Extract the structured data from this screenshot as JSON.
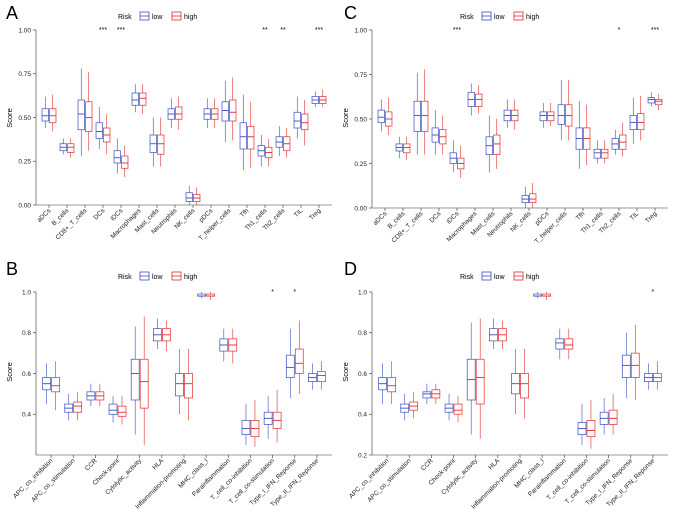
{
  "colors": {
    "low": "#3a4cc0",
    "high": "#e0292b",
    "axis": "#333333"
  },
  "chart_data": [
    {
      "panel": "A",
      "type": "box",
      "ylabel": "Score",
      "legend_title": "Risk",
      "legend": [
        "low",
        "high"
      ],
      "ylim": [
        0.0,
        1.0
      ],
      "yticks": [
        "0.00",
        "0.25",
        "0.50",
        "0.75",
        "1.00"
      ],
      "categories": [
        "aDCs",
        "B_cells",
        "CD8+_T_cells",
        "DCs",
        "iDCs",
        "Macrophages",
        "Mast_cells",
        "Neutrophils",
        "NK_cells",
        "pDCs",
        "T_helper_cells",
        "Tfh",
        "Th1_cells",
        "Th2_cells",
        "TIL",
        "Treg"
      ],
      "significance": [
        "",
        "",
        "",
        "***",
        "***",
        "",
        "",
        "",
        "",
        "",
        "",
        "",
        "**",
        "**",
        "",
        "***"
      ],
      "series": [
        {
          "name": "low",
          "boxes": [
            [
              0.44,
              0.48,
              0.51,
              0.55,
              0.62
            ],
            [
              0.29,
              0.31,
              0.33,
              0.35,
              0.38
            ],
            [
              0.28,
              0.43,
              0.52,
              0.6,
              0.78
            ],
            [
              0.32,
              0.38,
              0.42,
              0.47,
              0.56
            ],
            [
              0.18,
              0.24,
              0.27,
              0.31,
              0.38
            ],
            [
              0.53,
              0.57,
              0.6,
              0.64,
              0.69
            ],
            [
              0.22,
              0.3,
              0.35,
              0.4,
              0.5
            ],
            [
              0.44,
              0.49,
              0.52,
              0.55,
              0.61
            ],
            [
              0.0,
              0.02,
              0.04,
              0.07,
              0.11
            ],
            [
              0.44,
              0.49,
              0.52,
              0.55,
              0.61
            ],
            [
              0.36,
              0.48,
              0.54,
              0.59,
              0.71
            ],
            [
              0.2,
              0.32,
              0.39,
              0.47,
              0.63
            ],
            [
              0.22,
              0.28,
              0.31,
              0.34,
              0.4
            ],
            [
              0.28,
              0.33,
              0.36,
              0.39,
              0.45
            ],
            [
              0.38,
              0.44,
              0.48,
              0.53,
              0.62
            ],
            [
              0.56,
              0.58,
              0.6,
              0.62,
              0.65
            ]
          ]
        },
        {
          "name": "high",
          "boxes": [
            [
              0.42,
              0.47,
              0.51,
              0.55,
              0.63
            ],
            [
              0.27,
              0.3,
              0.33,
              0.35,
              0.38
            ],
            [
              0.31,
              0.42,
              0.5,
              0.59,
              0.76
            ],
            [
              0.29,
              0.36,
              0.4,
              0.44,
              0.52
            ],
            [
              0.16,
              0.21,
              0.24,
              0.28,
              0.34
            ],
            [
              0.52,
              0.57,
              0.61,
              0.64,
              0.69
            ],
            [
              0.22,
              0.29,
              0.35,
              0.4,
              0.5
            ],
            [
              0.43,
              0.49,
              0.52,
              0.56,
              0.62
            ],
            [
              0.0,
              0.02,
              0.04,
              0.06,
              0.1
            ],
            [
              0.44,
              0.49,
              0.52,
              0.55,
              0.61
            ],
            [
              0.37,
              0.48,
              0.53,
              0.6,
              0.73
            ],
            [
              0.21,
              0.32,
              0.39,
              0.45,
              0.59
            ],
            [
              0.22,
              0.27,
              0.3,
              0.33,
              0.38
            ],
            [
              0.27,
              0.31,
              0.35,
              0.39,
              0.44
            ],
            [
              0.34,
              0.43,
              0.47,
              0.52,
              0.6
            ],
            [
              0.56,
              0.58,
              0.6,
              0.62,
              0.66
            ]
          ]
        }
      ]
    },
    {
      "panel": "C",
      "type": "box",
      "ylabel": "Score",
      "legend_title": "Risk",
      "legend": [
        "low",
        "high"
      ],
      "ylim": [
        0.0,
        1.0
      ],
      "yticks": [
        "0.00",
        "0.25",
        "0.50",
        "0.75",
        "1.00"
      ],
      "categories": [
        "aDCs",
        "B_cells",
        "CD8+_T_cells",
        "DCs",
        "iDCs",
        "Macrophages",
        "Mast_cells",
        "Neutrophils",
        "NK_cells",
        "pDCs",
        "T_helper_cells",
        "Tfh",
        "Th1_cells",
        "Th2_cells",
        "TIL",
        "Treg"
      ],
      "significance": [
        "",
        "",
        "",
        "",
        "***",
        "",
        "",
        "",
        "",
        "",
        "",
        "",
        "",
        "*",
        "",
        "***"
      ],
      "series": [
        {
          "name": "low",
          "boxes": [
            [
              0.43,
              0.48,
              0.51,
              0.55,
              0.61
            ],
            [
              0.28,
              0.32,
              0.34,
              0.36,
              0.4
            ],
            [
              0.3,
              0.43,
              0.52,
              0.6,
              0.76
            ],
            [
              0.3,
              0.37,
              0.41,
              0.45,
              0.55
            ],
            [
              0.2,
              0.25,
              0.28,
              0.31,
              0.38
            ],
            [
              0.52,
              0.57,
              0.61,
              0.65,
              0.7
            ],
            [
              0.2,
              0.3,
              0.35,
              0.4,
              0.52
            ],
            [
              0.45,
              0.49,
              0.52,
              0.55,
              0.61
            ],
            [
              0.0,
              0.03,
              0.05,
              0.07,
              0.12
            ],
            [
              0.45,
              0.49,
              0.52,
              0.54,
              0.59
            ],
            [
              0.38,
              0.47,
              0.52,
              0.58,
              0.72
            ],
            [
              0.22,
              0.33,
              0.39,
              0.45,
              0.6
            ],
            [
              0.25,
              0.28,
              0.31,
              0.33,
              0.38
            ],
            [
              0.3,
              0.33,
              0.36,
              0.39,
              0.44
            ],
            [
              0.36,
              0.44,
              0.48,
              0.52,
              0.62
            ],
            [
              0.57,
              0.59,
              0.61,
              0.62,
              0.65
            ]
          ]
        },
        {
          "name": "high",
          "boxes": [
            [
              0.41,
              0.46,
              0.5,
              0.54,
              0.62
            ],
            [
              0.27,
              0.31,
              0.34,
              0.36,
              0.4
            ],
            [
              0.3,
              0.43,
              0.52,
              0.6,
              0.78
            ],
            [
              0.3,
              0.36,
              0.4,
              0.44,
              0.52
            ],
            [
              0.17,
              0.22,
              0.25,
              0.28,
              0.35
            ],
            [
              0.53,
              0.57,
              0.61,
              0.64,
              0.69
            ],
            [
              0.22,
              0.3,
              0.36,
              0.41,
              0.5
            ],
            [
              0.44,
              0.49,
              0.52,
              0.55,
              0.61
            ],
            [
              0.0,
              0.03,
              0.05,
              0.08,
              0.14
            ],
            [
              0.46,
              0.49,
              0.52,
              0.54,
              0.59
            ],
            [
              0.38,
              0.46,
              0.52,
              0.58,
              0.72
            ],
            [
              0.24,
              0.33,
              0.39,
              0.45,
              0.58
            ],
            [
              0.25,
              0.28,
              0.31,
              0.33,
              0.38
            ],
            [
              0.29,
              0.33,
              0.37,
              0.41,
              0.48
            ],
            [
              0.38,
              0.44,
              0.48,
              0.53,
              0.63
            ],
            [
              0.55,
              0.58,
              0.6,
              0.61,
              0.64
            ]
          ]
        }
      ]
    },
    {
      "panel": "B",
      "type": "box",
      "ylabel": "Score",
      "legend_title": "Risk",
      "legend": [
        "low",
        "high"
      ],
      "ylim": [
        0.2,
        1.0
      ],
      "yticks": [
        "0.4",
        "0.6",
        "0.8",
        "1.0"
      ],
      "categories": [
        "APC_co_inhibition",
        "APC_co_stimulation",
        "CCR",
        "Check-point",
        "Cytolytic_activity",
        "HLA",
        "Inflammation-promoting",
        "MHC_class_I",
        "Parainflammation",
        "T_cell_co-inhibition",
        "T_cell_co-stimulation",
        "Type_I_IFN_Reponse",
        "Type_II_IFN_Reponse"
      ],
      "significance": [
        "",
        "",
        "",
        "",
        "",
        "",
        "",
        "",
        "",
        "",
        "*",
        "*",
        ""
      ],
      "series": [
        {
          "name": "low",
          "boxes": [
            [
              0.45,
              0.52,
              0.55,
              0.58,
              0.65
            ],
            [
              0.37,
              0.41,
              0.43,
              0.45,
              0.5
            ],
            [
              0.44,
              0.47,
              0.49,
              0.51,
              0.55
            ],
            [
              0.36,
              0.4,
              0.42,
              0.45,
              0.49
            ],
            [
              0.3,
              0.47,
              0.6,
              0.67,
              0.83
            ],
            [
              0.72,
              0.76,
              0.79,
              0.82,
              0.87
            ],
            [
              0.4,
              0.49,
              0.55,
              0.6,
              0.72
            ],
            [
              0.97,
              0.98,
              0.98,
              0.99,
              1.0
            ],
            [
              0.66,
              0.71,
              0.74,
              0.77,
              0.82
            ],
            [
              0.25,
              0.3,
              0.33,
              0.37,
              0.45
            ],
            [
              0.28,
              0.35,
              0.38,
              0.41,
              0.49
            ],
            [
              0.48,
              0.58,
              0.63,
              0.69,
              0.82
            ],
            [
              0.52,
              0.56,
              0.58,
              0.6,
              0.65
            ]
          ]
        },
        {
          "name": "high",
          "boxes": [
            [
              0.42,
              0.51,
              0.54,
              0.58,
              0.66
            ],
            [
              0.37,
              0.41,
              0.44,
              0.46,
              0.51
            ],
            [
              0.44,
              0.47,
              0.49,
              0.51,
              0.55
            ],
            [
              0.35,
              0.39,
              0.41,
              0.44,
              0.49
            ],
            [
              0.25,
              0.43,
              0.56,
              0.67,
              0.88
            ],
            [
              0.71,
              0.76,
              0.79,
              0.82,
              0.86
            ],
            [
              0.37,
              0.48,
              0.55,
              0.6,
              0.72
            ],
            [
              0.96,
              0.98,
              0.98,
              0.99,
              1.0
            ],
            [
              0.65,
              0.71,
              0.74,
              0.77,
              0.82
            ],
            [
              0.24,
              0.29,
              0.33,
              0.37,
              0.47
            ],
            [
              0.26,
              0.33,
              0.37,
              0.41,
              0.52
            ],
            [
              0.5,
              0.6,
              0.65,
              0.72,
              0.86
            ],
            [
              0.52,
              0.56,
              0.59,
              0.61,
              0.66
            ]
          ]
        }
      ]
    },
    {
      "panel": "D",
      "type": "box",
      "ylabel": "Score",
      "legend_title": "Risk",
      "legend": [
        "low",
        "high"
      ],
      "ylim": [
        0.2,
        1.0
      ],
      "yticks": [
        "0.2",
        "0.4",
        "0.6",
        "0.8",
        "1.0"
      ],
      "categories": [
        "APC_co_inhibition",
        "APC_co_stimulation",
        "CCR",
        "Check-point",
        "Cytolytic_activity",
        "HLA",
        "Inflammation-promoting",
        "MHC_class_I",
        "Parainflammation",
        "T_cell_co-inhibition",
        "T_cell_co-stimulation",
        "Type_I_IFN_Reponse",
        "Type_II_IFN_Reponse"
      ],
      "significance": [
        "",
        "",
        "",
        "",
        "",
        "",
        "",
        "",
        "",
        "",
        "",
        "",
        "*"
      ],
      "series": [
        {
          "name": "low",
          "boxes": [
            [
              0.45,
              0.52,
              0.55,
              0.58,
              0.65
            ],
            [
              0.37,
              0.41,
              0.43,
              0.45,
              0.5
            ],
            [
              0.45,
              0.48,
              0.5,
              0.51,
              0.55
            ],
            [
              0.37,
              0.41,
              0.43,
              0.45,
              0.5
            ],
            [
              0.3,
              0.47,
              0.57,
              0.67,
              0.85
            ],
            [
              0.72,
              0.76,
              0.79,
              0.82,
              0.87
            ],
            [
              0.4,
              0.5,
              0.55,
              0.6,
              0.72
            ],
            [
              0.97,
              0.98,
              0.98,
              0.99,
              1.0
            ],
            [
              0.67,
              0.72,
              0.75,
              0.77,
              0.82
            ],
            [
              0.25,
              0.3,
              0.33,
              0.36,
              0.45
            ],
            [
              0.3,
              0.35,
              0.38,
              0.41,
              0.48
            ],
            [
              0.48,
              0.58,
              0.64,
              0.69,
              0.8
            ],
            [
              0.52,
              0.56,
              0.58,
              0.6,
              0.65
            ]
          ]
        },
        {
          "name": "high",
          "boxes": [
            [
              0.45,
              0.51,
              0.54,
              0.58,
              0.66
            ],
            [
              0.38,
              0.42,
              0.44,
              0.46,
              0.51
            ],
            [
              0.45,
              0.48,
              0.5,
              0.52,
              0.55
            ],
            [
              0.36,
              0.4,
              0.42,
              0.45,
              0.49
            ],
            [
              0.28,
              0.45,
              0.58,
              0.67,
              0.87
            ],
            [
              0.72,
              0.76,
              0.79,
              0.82,
              0.86
            ],
            [
              0.38,
              0.48,
              0.55,
              0.6,
              0.72
            ],
            [
              0.96,
              0.98,
              0.98,
              0.99,
              1.0
            ],
            [
              0.67,
              0.72,
              0.74,
              0.77,
              0.82
            ],
            [
              0.23,
              0.29,
              0.32,
              0.37,
              0.47
            ],
            [
              0.3,
              0.35,
              0.38,
              0.42,
              0.5
            ],
            [
              0.47,
              0.58,
              0.64,
              0.7,
              0.84
            ],
            [
              0.52,
              0.56,
              0.58,
              0.6,
              0.66
            ]
          ]
        }
      ]
    }
  ]
}
